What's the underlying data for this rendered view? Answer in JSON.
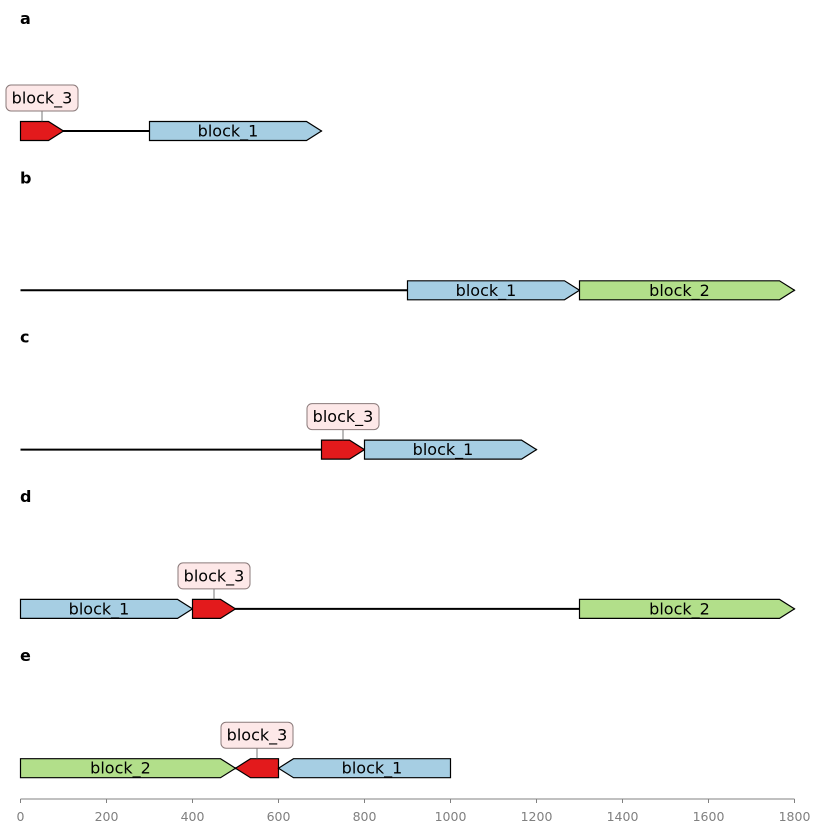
{
  "chart_data": {
    "type": "diagram",
    "description_type": "plasmid/sequence block maps",
    "x_axis": {
      "min": 0,
      "max": 1800,
      "ticks": [
        0,
        200,
        400,
        600,
        800,
        1000,
        1200,
        1400,
        1600,
        1800
      ],
      "tick_labels": [
        "0",
        "200",
        "400",
        "600",
        "800",
        "1000",
        "1200",
        "1400",
        "1600",
        "1800"
      ]
    },
    "colors": {
      "block_1": "#a6cee3",
      "block_2": "#b2df8a",
      "block_3": "#e31a1c",
      "tag_fill": "#fde8e8",
      "tag_border": "#8a7a7a",
      "axis": "#808080"
    },
    "panels": [
      {
        "label": "a",
        "backbone": [
          0,
          700
        ],
        "blocks": [
          {
            "name": "block_3",
            "start": 0,
            "end": 100,
            "strand": 1,
            "tag": true
          },
          {
            "name": "block_1",
            "start": 300,
            "end": 700,
            "strand": 1,
            "tag": false
          }
        ]
      },
      {
        "label": "b",
        "backbone": [
          0,
          1800
        ],
        "blocks": [
          {
            "name": "block_1",
            "start": 900,
            "end": 1300,
            "strand": 1,
            "tag": false
          },
          {
            "name": "block_2",
            "start": 1300,
            "end": 1800,
            "strand": 1,
            "tag": false
          }
        ]
      },
      {
        "label": "c",
        "backbone": [
          0,
          1200
        ],
        "blocks": [
          {
            "name": "block_3",
            "start": 700,
            "end": 800,
            "strand": 1,
            "tag": true
          },
          {
            "name": "block_1",
            "start": 800,
            "end": 1200,
            "strand": 1,
            "tag": false
          }
        ]
      },
      {
        "label": "d",
        "backbone": [
          0,
          1800
        ],
        "blocks": [
          {
            "name": "block_1",
            "start": 0,
            "end": 400,
            "strand": 1,
            "tag": false
          },
          {
            "name": "block_3",
            "start": 400,
            "end": 500,
            "strand": 1,
            "tag": true
          },
          {
            "name": "block_2",
            "start": 1300,
            "end": 1800,
            "strand": 1,
            "tag": false
          }
        ]
      },
      {
        "label": "e",
        "backbone": [
          0,
          1000
        ],
        "blocks": [
          {
            "name": "block_2",
            "start": 0,
            "end": 500,
            "strand": 1,
            "tag": false
          },
          {
            "name": "block_3",
            "start": 500,
            "end": 600,
            "strand": -1,
            "tag": true
          },
          {
            "name": "block_1",
            "start": 600,
            "end": 1000,
            "strand": -1,
            "tag": false
          }
        ]
      }
    ]
  }
}
